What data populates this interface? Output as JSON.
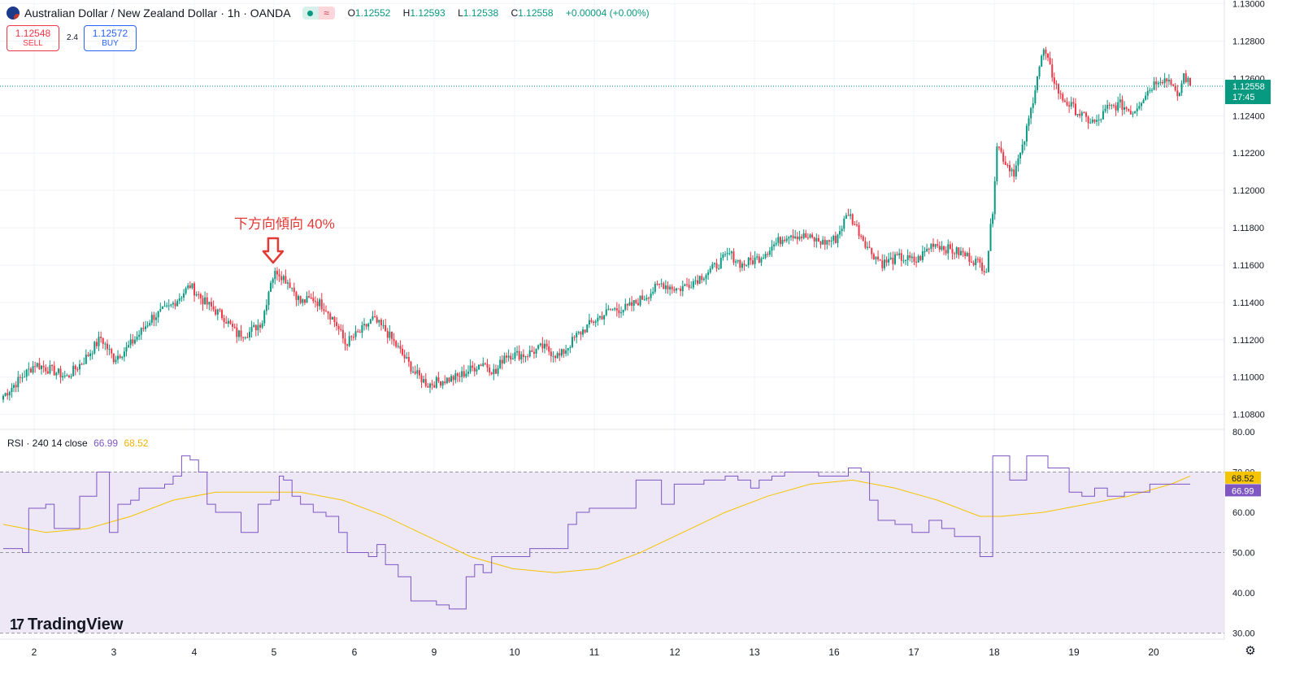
{
  "header": {
    "symbol_title": "Australian Dollar / New Zealand Dollar · 1h · OANDA",
    "status_wave": "≈",
    "ohlc": [
      {
        "k": "O",
        "v": "1.12552"
      },
      {
        "k": "H",
        "v": "1.12593"
      },
      {
        "k": "L",
        "v": "1.12538"
      },
      {
        "k": "C",
        "v": "1.12558"
      },
      {
        "k": "",
        "v": "+0.00004 (+0.00%)"
      }
    ]
  },
  "trade": {
    "sell_price": "1.12548",
    "sell_label": "SELL",
    "spread": "2.4",
    "buy_price": "1.12572",
    "buy_label": "BUY"
  },
  "annotation": {
    "text": "下方向傾向 40%",
    "arrow_color": "#e53935"
  },
  "rsi_legend": {
    "name": "RSI · 240 14 close",
    "rsi_value": "66.99",
    "ma_value": "68.52"
  },
  "branding": {
    "logo_mark": "17",
    "logo_text": "TradingView"
  },
  "colors": {
    "up": "#089981",
    "down": "#f23645",
    "rsi_line": "#7e57c2",
    "rsi_ma": "#f5c400",
    "rsi_band": "#ede7f6",
    "last_price_tag": "#089981",
    "rsi_tag": "#7e57c2",
    "ma_tag": "#f5c400"
  },
  "chart_data": [
    {
      "type": "candlestick",
      "title": "Australian Dollar / New Zealand Dollar · 1h · OANDA",
      "x_ticks": [
        "2",
        "3",
        "4",
        "5",
        "6",
        "9",
        "10",
        "11",
        "12",
        "13",
        "16",
        "17",
        "18",
        "19",
        "20"
      ],
      "y_ticks": [
        "1.13000",
        "1.12800",
        "1.12600",
        "1.12400",
        "1.12200",
        "1.12000",
        "1.11800",
        "1.11600",
        "1.11400",
        "1.11200",
        "1.11000",
        "1.10800"
      ],
      "ylim": [
        1.1072,
        1.1302
      ],
      "last_price": "1.12558",
      "last_price_countdown": "17:45",
      "close_path_keypoints": [
        [
          0,
          1.109
        ],
        [
          7,
          1.1098
        ],
        [
          15,
          1.1107
        ],
        [
          22,
          1.1104
        ],
        [
          30,
          1.11
        ],
        [
          38,
          1.1109
        ],
        [
          46,
          1.1121
        ],
        [
          52,
          1.111
        ],
        [
          58,
          1.1115
        ],
        [
          64,
          1.1123
        ],
        [
          70,
          1.1132
        ],
        [
          78,
          1.1137
        ],
        [
          88,
          1.1149
        ],
        [
          95,
          1.114
        ],
        [
          104,
          1.1132
        ],
        [
          110,
          1.1123
        ],
        [
          116,
          1.1124
        ],
        [
          122,
          1.113
        ],
        [
          126,
          1.1152
        ],
        [
          129,
          1.1157
        ],
        [
          135,
          1.115
        ],
        [
          140,
          1.114
        ],
        [
          146,
          1.1142
        ],
        [
          152,
          1.1137
        ],
        [
          157,
          1.1128
        ],
        [
          161,
          1.1118
        ],
        [
          168,
          1.1124
        ],
        [
          174,
          1.1131
        ],
        [
          180,
          1.1125
        ],
        [
          188,
          1.1112
        ],
        [
          194,
          1.1102
        ],
        [
          200,
          1.1096
        ],
        [
          206,
          1.1098
        ],
        [
          214,
          1.11
        ],
        [
          220,
          1.1104
        ],
        [
          226,
          1.1108
        ],
        [
          232,
          1.1102
        ],
        [
          236,
          1.1112
        ],
        [
          246,
          1.1112
        ],
        [
          254,
          1.1116
        ],
        [
          262,
          1.1111
        ],
        [
          270,
          1.1122
        ],
        [
          278,
          1.113
        ],
        [
          286,
          1.1136
        ],
        [
          294,
          1.1137
        ],
        [
          302,
          1.1143
        ],
        [
          310,
          1.115
        ],
        [
          318,
          1.1147
        ],
        [
          326,
          1.1152
        ],
        [
          334,
          1.1158
        ],
        [
          342,
          1.1166
        ],
        [
          348,
          1.116
        ],
        [
          356,
          1.1164
        ],
        [
          362,
          1.117
        ],
        [
          370,
          1.1177
        ],
        [
          378,
          1.1175
        ],
        [
          386,
          1.1172
        ],
        [
          392,
          1.1174
        ],
        [
          398,
          1.1188
        ],
        [
          402,
          1.118
        ],
        [
          408,
          1.1168
        ],
        [
          414,
          1.1161
        ],
        [
          422,
          1.1164
        ],
        [
          430,
          1.1162
        ],
        [
          438,
          1.1172
        ],
        [
          446,
          1.1168
        ],
        [
          452,
          1.1166
        ],
        [
          458,
          1.1162
        ],
        [
          463,
          1.1158
        ],
        [
          466,
          1.119
        ],
        [
          468,
          1.1225
        ],
        [
          472,
          1.1215
        ],
        [
          476,
          1.121
        ],
        [
          480,
          1.1222
        ],
        [
          484,
          1.1243
        ],
        [
          487,
          1.1262
        ],
        [
          490,
          1.1275
        ],
        [
          494,
          1.1262
        ],
        [
          498,
          1.125
        ],
        [
          503,
          1.1245
        ],
        [
          510,
          1.1238
        ],
        [
          515,
          1.1236
        ],
        [
          520,
          1.1244
        ],
        [
          526,
          1.1246
        ],
        [
          532,
          1.1242
        ],
        [
          538,
          1.1252
        ],
        [
          544,
          1.126
        ],
        [
          550,
          1.1259
        ],
        [
          553,
          1.1248
        ],
        [
          556,
          1.1262
        ],
        [
          559,
          1.1256
        ]
      ],
      "annotation": {
        "text": "下方向傾向 40%",
        "at_bar": 129
      }
    },
    {
      "type": "line",
      "title": "RSI · 240 14 close",
      "y_ticks": [
        "80.00",
        "70.00",
        "60.00",
        "50.00",
        "40.00",
        "30.00"
      ],
      "ylim": [
        28.5,
        80.6
      ],
      "bands": [
        30,
        50,
        70
      ],
      "series": [
        {
          "name": "66.99",
          "points": [
            [
              0,
              51
            ],
            [
              9,
              50
            ],
            [
              12,
              61
            ],
            [
              20,
              62
            ],
            [
              24,
              56
            ],
            [
              32,
              56
            ],
            [
              36,
              64
            ],
            [
              44,
              70
            ],
            [
              48,
              70
            ],
            [
              50,
              55
            ],
            [
              54,
              62
            ],
            [
              60,
              63
            ],
            [
              64,
              66
            ],
            [
              72,
              66
            ],
            [
              76,
              67
            ],
            [
              80,
              69
            ],
            [
              84,
              74
            ],
            [
              88,
              73
            ],
            [
              92,
              70
            ],
            [
              96,
              62
            ],
            [
              100,
              60
            ],
            [
              108,
              60
            ],
            [
              112,
              55
            ],
            [
              116,
              55
            ],
            [
              120,
              62
            ],
            [
              126,
              63
            ],
            [
              130,
              69
            ],
            [
              132,
              68
            ],
            [
              136,
              64
            ],
            [
              140,
              62
            ],
            [
              146,
              60
            ],
            [
              152,
              59
            ],
            [
              158,
              55
            ],
            [
              162,
              50
            ],
            [
              168,
              50
            ],
            [
              172,
              49
            ],
            [
              176,
              52
            ],
            [
              180,
              47
            ],
            [
              186,
              44
            ],
            [
              192,
              38
            ],
            [
              198,
              38
            ],
            [
              204,
              37
            ],
            [
              210,
              36
            ],
            [
              214,
              36
            ],
            [
              218,
              44
            ],
            [
              222,
              47
            ],
            [
              226,
              45
            ],
            [
              230,
              49
            ],
            [
              236,
              49
            ],
            [
              240,
              49
            ],
            [
              248,
              51
            ],
            [
              254,
              51
            ],
            [
              262,
              51
            ],
            [
              266,
              57
            ],
            [
              270,
              60
            ],
            [
              276,
              61
            ],
            [
              284,
              61
            ],
            [
              292,
              61
            ],
            [
              298,
              68
            ],
            [
              306,
              68
            ],
            [
              310,
              62
            ],
            [
              316,
              67
            ],
            [
              322,
              67
            ],
            [
              330,
              68
            ],
            [
              340,
              69
            ],
            [
              346,
              68
            ],
            [
              352,
              66
            ],
            [
              356,
              68
            ],
            [
              362,
              69
            ],
            [
              368,
              70
            ],
            [
              376,
              70
            ],
            [
              384,
              69
            ],
            [
              390,
              69
            ],
            [
              398,
              71
            ],
            [
              404,
              70
            ],
            [
              408,
              63
            ],
            [
              412,
              58
            ],
            [
              420,
              57
            ],
            [
              428,
              55
            ],
            [
              436,
              58
            ],
            [
              442,
              56
            ],
            [
              448,
              54
            ],
            [
              454,
              54
            ],
            [
              460,
              49
            ],
            [
              464,
              49
            ],
            [
              466,
              74
            ],
            [
              470,
              74
            ],
            [
              474,
              68
            ],
            [
              478,
              68
            ],
            [
              482,
              74
            ],
            [
              486,
              74
            ],
            [
              492,
              71
            ],
            [
              498,
              71
            ],
            [
              502,
              65
            ],
            [
              508,
              64
            ],
            [
              514,
              66
            ],
            [
              520,
              64
            ],
            [
              528,
              65
            ],
            [
              540,
              67
            ],
            [
              552,
              67
            ],
            [
              559,
              67
            ]
          ]
        },
        {
          "name": "68.52",
          "points": [
            [
              0,
              57
            ],
            [
              20,
              55
            ],
            [
              40,
              56
            ],
            [
              60,
              59
            ],
            [
              80,
              63
            ],
            [
              100,
              65
            ],
            [
              120,
              65
            ],
            [
              140,
              65
            ],
            [
              160,
              63
            ],
            [
              180,
              59
            ],
            [
              200,
              54
            ],
            [
              220,
              49
            ],
            [
              240,
              46
            ],
            [
              260,
              45
            ],
            [
              280,
              46
            ],
            [
              300,
              50
            ],
            [
              320,
              55
            ],
            [
              340,
              60
            ],
            [
              360,
              64
            ],
            [
              380,
              67
            ],
            [
              400,
              68
            ],
            [
              420,
              66
            ],
            [
              440,
              63
            ],
            [
              460,
              59
            ],
            [
              470,
              59
            ],
            [
              490,
              60
            ],
            [
              510,
              62
            ],
            [
              530,
              64
            ],
            [
              550,
              67
            ],
            [
              559,
              69
            ]
          ]
        }
      ],
      "rsi_value": "66.99",
      "ma_value": "68.52"
    }
  ]
}
